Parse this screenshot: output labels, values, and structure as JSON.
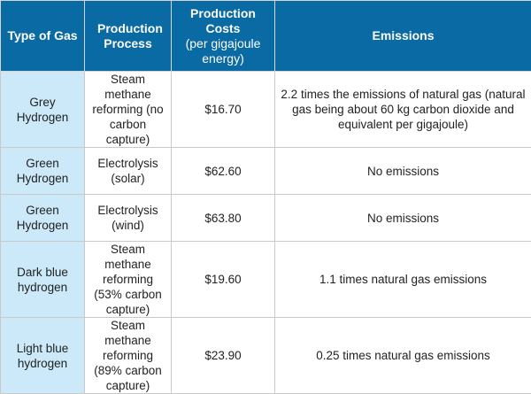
{
  "table": {
    "headers": [
      {
        "title": "Type of Gas",
        "subtitle": ""
      },
      {
        "title": "Production Process",
        "subtitle": ""
      },
      {
        "title": "Production Costs",
        "subtitle": "(per gigajoule energy)"
      },
      {
        "title": "Emissions",
        "subtitle": ""
      }
    ],
    "rows": [
      [
        "Grey Hydrogen",
        "Steam methane reforming (no carbon capture)",
        "$16.70",
        "2.2 times the emissions of natural gas (natural gas being about 60 kg carbon dioxide and equivalent per gigajoule)"
      ],
      [
        "Green Hydrogen",
        "Electrolysis (solar)",
        "$62.60",
        "No emissions"
      ],
      [
        "Green Hydrogen",
        "Electrolysis (wind)",
        "$63.80",
        "No emissions"
      ],
      [
        "Dark blue hydrogen",
        "Steam methane reforming (53% carbon capture)",
        "$19.60",
        "1.1 times natural gas emissions"
      ],
      [
        "Light blue hydrogen",
        "Steam methane reforming (89% carbon capture)",
        "$23.90",
        "0.25 times natural gas emissions"
      ]
    ],
    "colors": {
      "header": "#0a6aa3",
      "first_column": "#cbe9f8",
      "border": "#c9c9c9"
    }
  }
}
